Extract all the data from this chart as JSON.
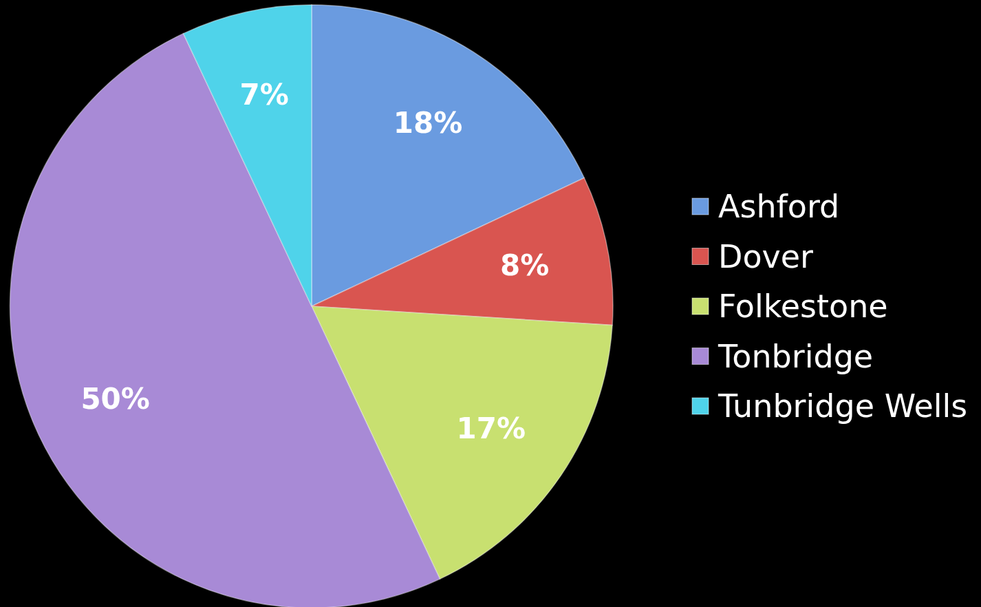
{
  "chart_data": {
    "type": "pie",
    "categories": [
      "Ashford",
      "Dover",
      "Folkestone",
      "Tonbridge",
      "Tunbridge Wells"
    ],
    "values": [
      18,
      8,
      17,
      50,
      7
    ],
    "colors": [
      "#6a9be0",
      "#d95550",
      "#c8e070",
      "#a88ad6",
      "#4fd3ea"
    ],
    "value_labels": [
      "18%",
      "8%",
      "17%",
      "50%",
      "7%"
    ],
    "legend": "right"
  }
}
